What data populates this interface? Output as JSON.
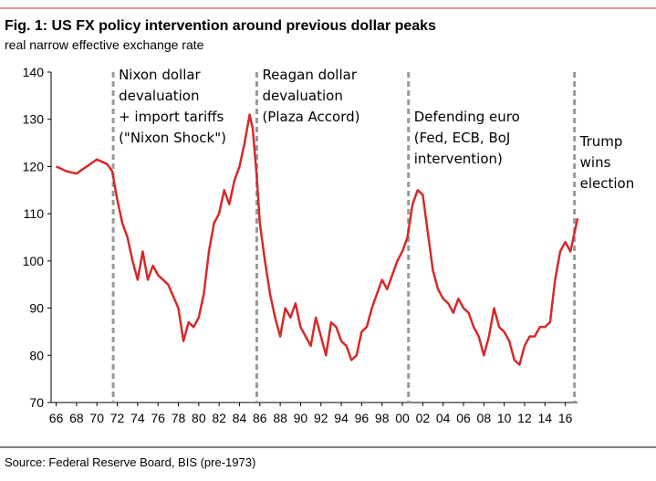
{
  "chart_data": {
    "type": "line",
    "title": "Fig. 1: US FX policy intervention around previous dollar peaks",
    "subtitle": "real narrow effective exchange rate",
    "source": "Source: Federal Reserve Board, BIS (pre-1973)",
    "series": [
      {
        "name": "real narrow effective exchange rate",
        "color": "#d42a2a",
        "x": [
          1966,
          1967,
          1968,
          1969,
          1970,
          1971,
          1971.5,
          1972,
          1972.5,
          1973,
          1973.5,
          1974,
          1974.5,
          1975,
          1975.5,
          1976,
          1977,
          1978,
          1978.5,
          1979,
          1979.5,
          1980,
          1980.5,
          1981,
          1981.5,
          1982,
          1982.5,
          1983,
          1983.5,
          1984,
          1984.5,
          1985,
          1985.3,
          1985.7,
          1986,
          1986.5,
          1987,
          1987.5,
          1988,
          1988.5,
          1989,
          1989.5,
          1990,
          1990.5,
          1991,
          1991.5,
          1992,
          1992.5,
          1993,
          1993.5,
          1994,
          1994.5,
          1995,
          1995.5,
          1996,
          1996.5,
          1997,
          1997.5,
          1998,
          1998.5,
          1999,
          1999.5,
          2000,
          2000.5,
          2001,
          2001.5,
          2002,
          2002.5,
          2003,
          2003.5,
          2004,
          2004.5,
          2005,
          2005.5,
          2006,
          2006.5,
          2007,
          2007.5,
          2008,
          2008.5,
          2009,
          2009.5,
          2010,
          2010.5,
          2011,
          2011.5,
          2012,
          2012.5,
          2013,
          2013.5,
          2014,
          2014.5,
          2015,
          2015.5,
          2016,
          2016.5,
          2016.9,
          2017.2
        ],
        "values": [
          120,
          119,
          118.5,
          120,
          121.5,
          120.5,
          119,
          113,
          108,
          105,
          100,
          96,
          102,
          96,
          99,
          97,
          95,
          90,
          83,
          87,
          86,
          88,
          93,
          102,
          108,
          110,
          115,
          112,
          117,
          120,
          125,
          131,
          128,
          118,
          108,
          100,
          93,
          88,
          84,
          90,
          88,
          91,
          86,
          84,
          82,
          88,
          84,
          80,
          87,
          86,
          83,
          82,
          79,
          80,
          85,
          86,
          90,
          93,
          96,
          94,
          97,
          100,
          102,
          105,
          112,
          115,
          114,
          106,
          98,
          94,
          92,
          91,
          89,
          92,
          90,
          89,
          86,
          84,
          80,
          84,
          90,
          86,
          85,
          83,
          79,
          78,
          82,
          84,
          84,
          86,
          86,
          87,
          96,
          102,
          104,
          102,
          106,
          109
        ]
      }
    ],
    "events": [
      {
        "x": 1971.6,
        "label": [
          "Nixon dollar",
          "devaluation",
          "+ import tariffs",
          "(\"Nixon Shock\")"
        ]
      },
      {
        "x": 1985.7,
        "label": [
          "Reagan dollar",
          "devaluation",
          "(Plaza Accord)"
        ]
      },
      {
        "x": 2000.6,
        "label": [
          "Defending euro",
          "(Fed, ECB, BoJ",
          "intervention)"
        ]
      },
      {
        "x": 2016.9,
        "label": [
          "Trump",
          "wins",
          "election"
        ]
      }
    ],
    "xlim": [
      1965.5,
      2017.2
    ],
    "ylim": [
      70,
      140
    ],
    "yticks": [
      70,
      80,
      90,
      100,
      110,
      120,
      130,
      140
    ],
    "xticks": [
      {
        "value": 1966,
        "label": "66"
      },
      {
        "value": 1968,
        "label": "68"
      },
      {
        "value": 1970,
        "label": "70"
      },
      {
        "value": 1972,
        "label": "72"
      },
      {
        "value": 1974,
        "label": "74"
      },
      {
        "value": 1976,
        "label": "76"
      },
      {
        "value": 1978,
        "label": "78"
      },
      {
        "value": 1980,
        "label": "80"
      },
      {
        "value": 1982,
        "label": "82"
      },
      {
        "value": 1984,
        "label": "84"
      },
      {
        "value": 1986,
        "label": "86"
      },
      {
        "value": 1988,
        "label": "88"
      },
      {
        "value": 1990,
        "label": "90"
      },
      {
        "value": 1992,
        "label": "92"
      },
      {
        "value": 1994,
        "label": "94"
      },
      {
        "value": 1996,
        "label": "96"
      },
      {
        "value": 1998,
        "label": "98"
      },
      {
        "value": 2000,
        "label": "00"
      },
      {
        "value": 2002,
        "label": "02"
      },
      {
        "value": 2004,
        "label": "04"
      },
      {
        "value": 2006,
        "label": "06"
      },
      {
        "value": 2008,
        "label": "08"
      },
      {
        "value": 2010,
        "label": "10"
      },
      {
        "value": 2012,
        "label": "12"
      },
      {
        "value": 2014,
        "label": "14"
      },
      {
        "value": 2016,
        "label": "16"
      }
    ]
  }
}
